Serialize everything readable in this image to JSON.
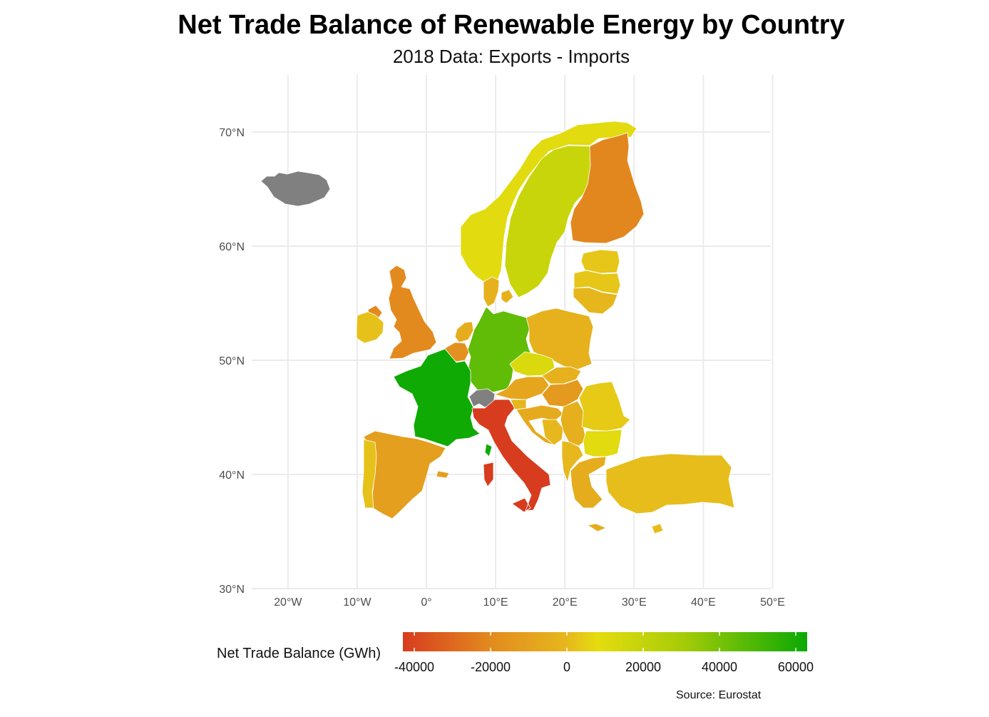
{
  "title": "Net Trade Balance of Renewable Energy by Country",
  "subtitle": "2018 Data: Exports - Imports",
  "caption": "Source: Eurostat",
  "map": {
    "lon_ticks": [
      {
        "value": -20,
        "label": "20°W"
      },
      {
        "value": -10,
        "label": "10°W"
      },
      {
        "value": 0,
        "label": "0°"
      },
      {
        "value": 10,
        "label": "10°E"
      },
      {
        "value": 20,
        "label": "20°E"
      },
      {
        "value": 30,
        "label": "30°E"
      },
      {
        "value": 40,
        "label": "40°E"
      },
      {
        "value": 50,
        "label": "50°E"
      }
    ],
    "lat_ticks": [
      {
        "value": 30,
        "label": "30°N"
      },
      {
        "value": 40,
        "label": "40°N"
      },
      {
        "value": 50,
        "label": "50°N"
      },
      {
        "value": 60,
        "label": "60°N"
      },
      {
        "value": 70,
        "label": "70°N"
      }
    ],
    "missing_color": "#808080"
  },
  "legend": {
    "title": "Net Trade Balance (GWh)",
    "range": [
      -43000,
      63000
    ],
    "gradient": [
      {
        "value": -43000,
        "color": "#d73c1f"
      },
      {
        "value": -20000,
        "color": "#e38a1e"
      },
      {
        "value": 0,
        "color": "#e6b81d"
      },
      {
        "value": 8000,
        "color": "#e5dc0f"
      },
      {
        "value": 30000,
        "color": "#a8cc07"
      },
      {
        "value": 63000,
        "color": "#0aa904"
      }
    ],
    "ticks": [
      {
        "value": -40000,
        "label": "-40000"
      },
      {
        "value": -20000,
        "label": "-20000"
      },
      {
        "value": 0,
        "label": "0"
      },
      {
        "value": 20000,
        "label": "20000"
      },
      {
        "value": 40000,
        "label": "40000"
      },
      {
        "value": 60000,
        "label": "60000"
      }
    ]
  },
  "chart_data": {
    "type": "choropleth",
    "value_label": "Net Trade Balance (GWh)",
    "regions": [
      {
        "name": "France",
        "value": 62000
      },
      {
        "name": "Germany",
        "value": 45000
      },
      {
        "name": "Sweden",
        "value": 18000
      },
      {
        "name": "Norway",
        "value": 9000
      },
      {
        "name": "Czechia",
        "value": 12000
      },
      {
        "name": "Bulgaria",
        "value": 9000
      },
      {
        "name": "Estonia",
        "value": 3000
      },
      {
        "name": "Romania",
        "value": 4000
      },
      {
        "name": "Latvia",
        "value": 3000
      },
      {
        "name": "Ireland",
        "value": 2000
      },
      {
        "name": "Portugal",
        "value": 2000
      },
      {
        "name": "Lithuania",
        "value": -1000
      },
      {
        "name": "Slovenia",
        "value": -1000
      },
      {
        "name": "Turkey",
        "value": 1000
      },
      {
        "name": "Poland",
        "value": -3000
      },
      {
        "name": "Slovakia",
        "value": -3000
      },
      {
        "name": "Denmark",
        "value": -3000
      },
      {
        "name": "Netherlands",
        "value": -5000
      },
      {
        "name": "Croatia",
        "value": -6000
      },
      {
        "name": "Serbia",
        "value": -4000
      },
      {
        "name": "Greece",
        "value": -5000
      },
      {
        "name": "Austria",
        "value": -8000
      },
      {
        "name": "Spain",
        "value": -11000
      },
      {
        "name": "Hungary",
        "value": -13000
      },
      {
        "name": "Belgium",
        "value": -17000
      },
      {
        "name": "United Kingdom",
        "value": -20000
      },
      {
        "name": "Finland",
        "value": -21000
      },
      {
        "name": "Italy",
        "value": -43000
      },
      {
        "name": "Iceland",
        "value": null
      },
      {
        "name": "Switzerland",
        "value": null
      }
    ]
  }
}
